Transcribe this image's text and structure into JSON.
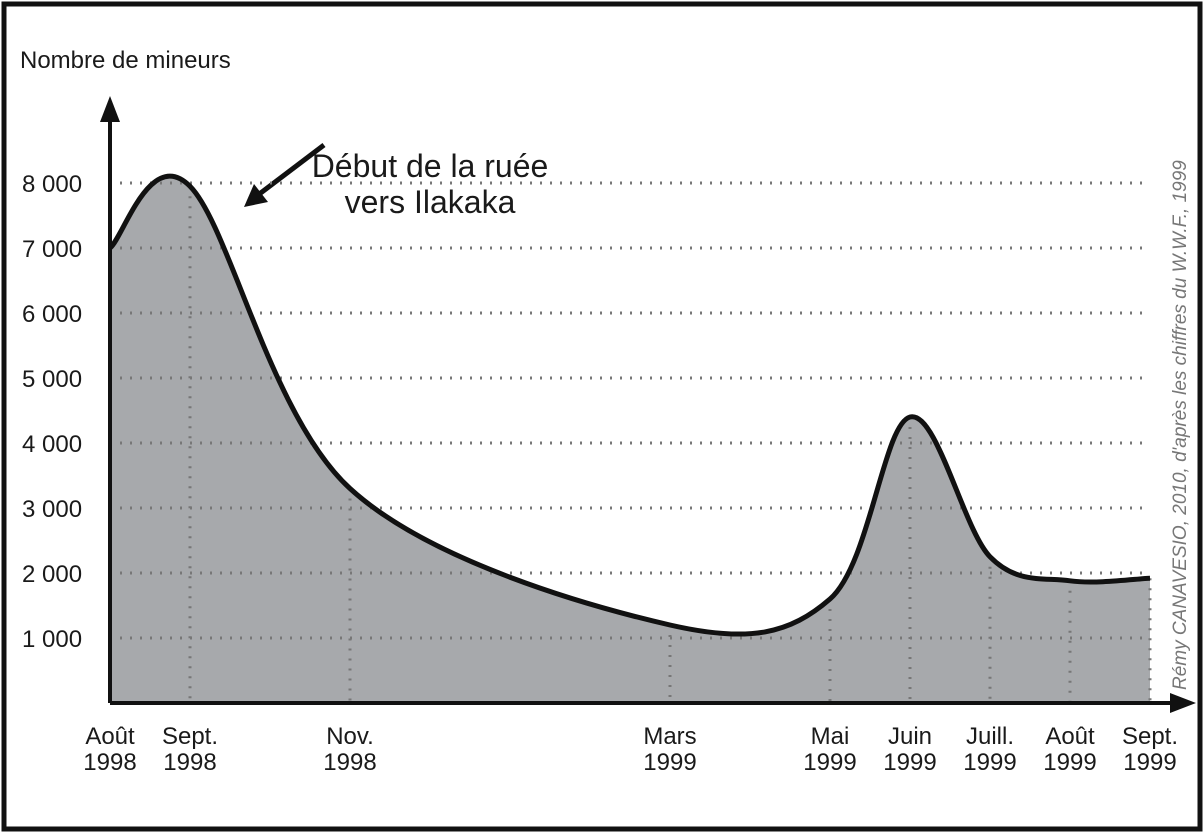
{
  "chart_data": {
    "type": "area",
    "y_label": "Nombre de mineurs",
    "annotation": "Début de la ruée vers Ilakaka",
    "source": "Rémy CANAVESIO, 2010, d'après les chiffres du W.W.F., 1999",
    "x": [
      "1998-08",
      "1998-09",
      "1998-11",
      "1999-03",
      "1999-05",
      "1999-06",
      "1999-07",
      "1999-08",
      "1999-09"
    ],
    "values": [
      7000,
      7950,
      3300,
      1200,
      1600,
      4400,
      2250,
      1880,
      1920
    ],
    "color": "#a7a9ac",
    "xlim": [
      "1998-08",
      "1999-09"
    ],
    "xticks": [
      {
        "value": "1998-08",
        "label": "Août 1998"
      },
      {
        "value": "1998-09",
        "label": "Sept. 1998"
      },
      {
        "value": "1998-11",
        "label": "Nov. 1998"
      },
      {
        "value": "1999-03",
        "label": "Mars 1999"
      },
      {
        "value": "1999-05",
        "label": "Mai 1999"
      },
      {
        "value": "1999-06",
        "label": "Juin 1999"
      },
      {
        "value": "1999-07",
        "label": "Juill. 1999"
      },
      {
        "value": "1999-08",
        "label": "Août 1999"
      },
      {
        "value": "1999-09",
        "label": "Sept. 1999"
      }
    ],
    "ylim": [
      0,
      8000
    ],
    "yticks": [
      {
        "value": 1000,
        "label": "1 000"
      },
      {
        "value": 2000,
        "label": "2 000"
      },
      {
        "value": 3000,
        "label": "3 000"
      },
      {
        "value": 4000,
        "label": "4 000"
      },
      {
        "value": 5000,
        "label": "5 000"
      },
      {
        "value": 6000,
        "label": "6 000"
      },
      {
        "value": 7000,
        "label": "7 000"
      },
      {
        "value": 8000,
        "label": "8 000"
      }
    ],
    "grid": true
  }
}
